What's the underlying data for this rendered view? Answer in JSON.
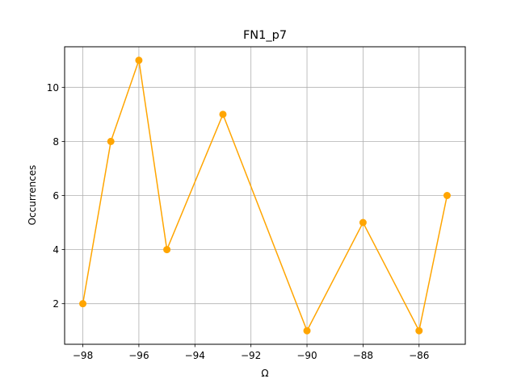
{
  "chart_data": {
    "type": "line",
    "title": "FN1_p7",
    "xlabel": "Ω",
    "ylabel": "Occurrences",
    "xlim": [
      -98.65,
      -84.35
    ],
    "ylim": [
      0.5,
      11.5
    ],
    "xticks": [
      -98,
      -96,
      -94,
      -92,
      -90,
      -88,
      -86
    ],
    "yticks": [
      2,
      4,
      6,
      8,
      10
    ],
    "xtick_labels": [
      "−98",
      "−96",
      "−94",
      "−92",
      "−90",
      "−88",
      "−86"
    ],
    "ytick_labels": [
      "2",
      "4",
      "6",
      "8",
      "10"
    ],
    "grid": true,
    "legend": "none",
    "color": "#ffa500",
    "marker": "circle",
    "x": [
      -98,
      -97,
      -96,
      -95,
      -93,
      -90,
      -88,
      -86,
      -85
    ],
    "y": [
      2,
      8,
      11,
      4,
      9,
      1,
      5,
      1,
      6
    ]
  }
}
